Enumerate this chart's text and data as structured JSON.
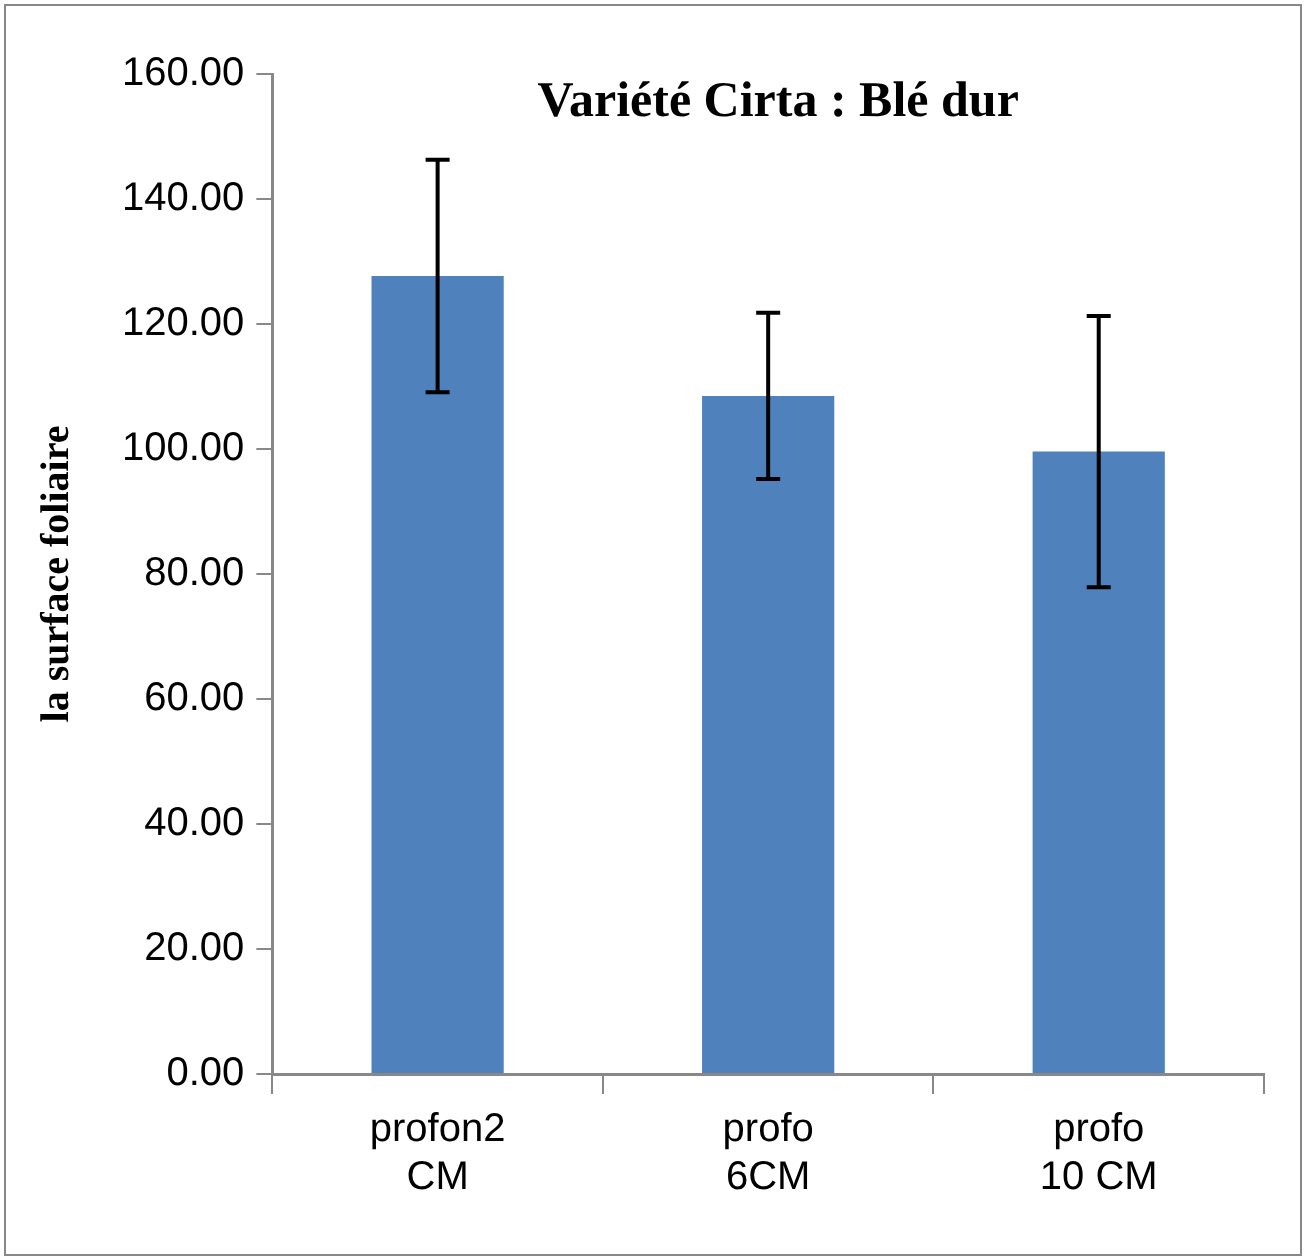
{
  "chart_data": {
    "type": "bar",
    "title": "Variété Cirta : Blé dur",
    "ylabel": "la surface foliaire",
    "categories": [
      "profon2 CM",
      "profo 6CM",
      "profo 10 CM"
    ],
    "values": [
      127.7,
      108.5,
      99.6
    ],
    "errors": [
      18.6,
      13.3,
      21.7
    ],
    "color": "#4f81bd",
    "ylim": [
      0,
      160
    ],
    "yticks": [
      {
        "value": 0,
        "label": "0.00"
      },
      {
        "value": 20,
        "label": "20.00"
      },
      {
        "value": 40,
        "label": "40.00"
      },
      {
        "value": 60,
        "label": "60.00"
      },
      {
        "value": 80,
        "label": "80.00"
      },
      {
        "value": 100,
        "label": "100.00"
      },
      {
        "value": 120,
        "label": "120.00"
      },
      {
        "value": 140,
        "label": "140.00"
      },
      {
        "value": 160,
        "label": "160.00"
      }
    ],
    "grid": false,
    "legend": false
  }
}
